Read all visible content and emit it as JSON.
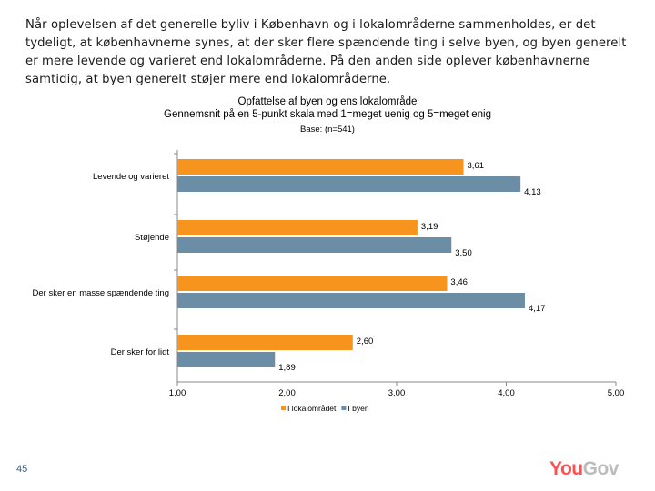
{
  "intro_text": "Når oplevelsen af det generelle byliv i København og i lokalområderne sammenholdes, er det tydeligt, at københavnerne synes, at der sker flere spændende ting i selve byen, og byen generelt er mere levende og varieret end lokalområderne. På den anden side oplever københavnerne samtidig, at byen generelt støjer mere end lokalområderne.",
  "page_number": "45",
  "logo": {
    "you": "You",
    "gov": "Gov"
  },
  "chart_data": {
    "type": "bar",
    "orientation": "horizontal",
    "title": "Opfattelse af byen og ens lokalområde",
    "subtitle": "Gennemsnit på en 5-punkt skala med 1=meget uenig og 5=meget enig",
    "base_note": "Base: (n=541)",
    "categories": [
      "Levende og varieret",
      "Støjende",
      "Der sker en masse spændende ting",
      "Der sker for lidt"
    ],
    "series": [
      {
        "name": "I lokalområdet",
        "values": [
          3.61,
          3.19,
          3.46,
          2.6
        ],
        "labels": [
          "3,61",
          "3,19",
          "3,46",
          "2,60"
        ],
        "color": "#f7941d"
      },
      {
        "name": "I byen",
        "values": [
          4.13,
          3.5,
          4.17,
          1.89
        ],
        "labels": [
          "4,13",
          "3,50",
          "4,17",
          "1,89"
        ],
        "color": "#6b8ea6"
      }
    ],
    "xlim": [
      1,
      5
    ],
    "xticks": [
      1,
      2,
      3,
      4,
      5
    ],
    "xtick_labels": [
      "1,00",
      "2,00",
      "3,00",
      "4,00",
      "5,00"
    ],
    "grid": false,
    "legend_position": "bottom"
  }
}
